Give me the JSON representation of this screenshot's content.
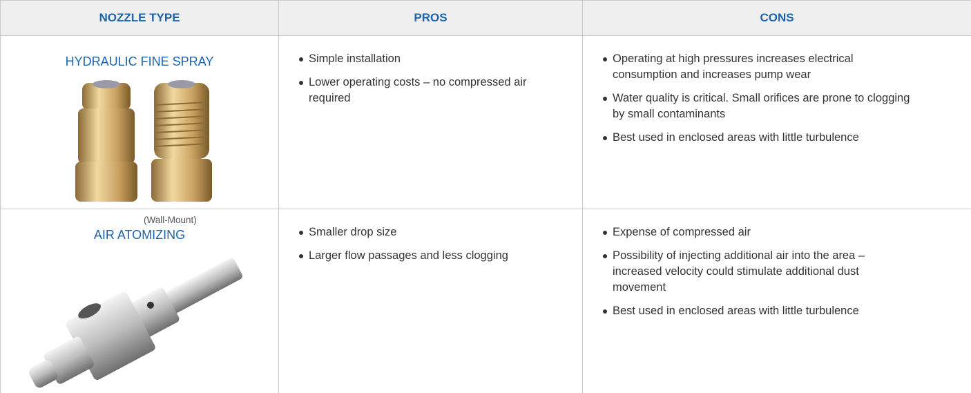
{
  "table": {
    "headers": [
      "NOZZLE TYPE",
      "PROS",
      "CONS"
    ],
    "rows": [
      {
        "type": "HYDRAULIC FINE SPRAY",
        "caption": "(Wall-Mount)",
        "pros": [
          "Simple installation",
          "Lower operating costs – no compressed air required"
        ],
        "cons": [
          "Operating at high pressures increases electrical consumption and increases pump wear",
          "Water quality is critical. Small orifices are prone to clogging by small contaminants",
          "Best used in enclosed areas with little turbulence"
        ]
      },
      {
        "type": "AIR ATOMIZING",
        "pros": [
          "Smaller drop size",
          "Larger flow passages and less clogging"
        ],
        "cons": [
          "Expense of compressed air",
          "Possibility of injecting additional air into the area – increased velocity could stimulate additional dust movement",
          "Best used in enclosed areas with little turbulence"
        ]
      }
    ]
  }
}
